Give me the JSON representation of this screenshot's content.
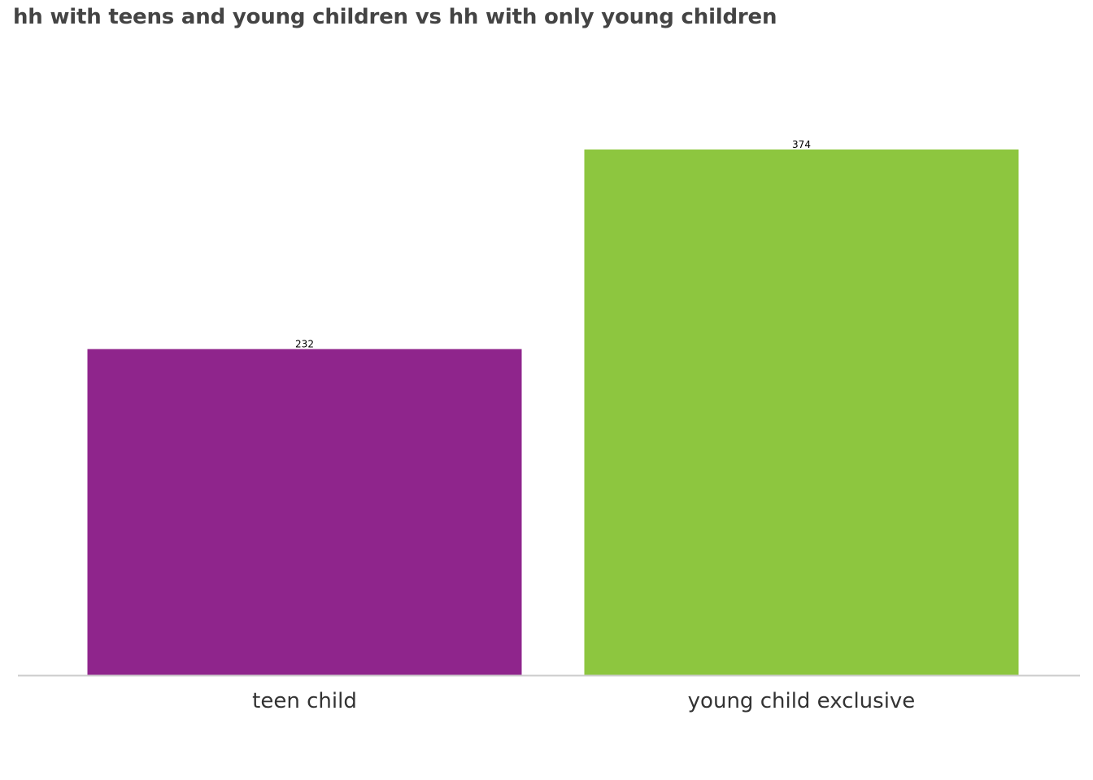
{
  "chart_data": {
    "type": "bar",
    "title": "hh with teens and young children vs hh with only young children",
    "xlabel": "",
    "ylabel": "",
    "categories": [
      "teen child",
      "young child exclusive"
    ],
    "values": [
      232,
      374
    ],
    "data_labels": [
      "232",
      "374"
    ],
    "colors": [
      "#8f258c",
      "#8dc63f"
    ],
    "axis_color": "#cccccc",
    "ylim": [
      0,
      374
    ],
    "grid": false,
    "legend": "none"
  }
}
